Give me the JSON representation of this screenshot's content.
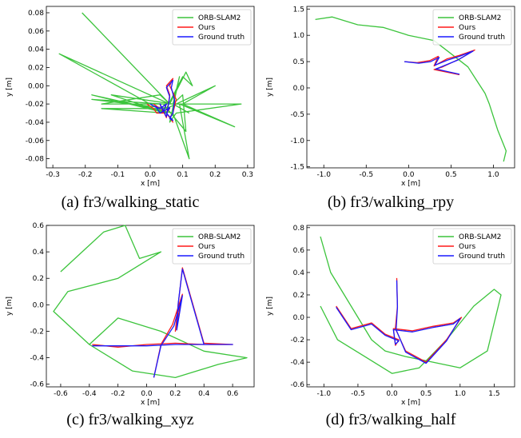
{
  "colors": {
    "orb": "#3cc43c",
    "ours": "#ff1a1a",
    "gt": "#1a1aff"
  },
  "chart_data": [
    {
      "type": "line",
      "caption": "(a) fr3/walking_static",
      "xlabel": "x [m]",
      "ylabel": "y [m]",
      "xlim": [
        -0.32,
        0.32
      ],
      "ylim": [
        -0.09,
        0.087
      ],
      "xticks": [
        "-0.3",
        "-0.2",
        "-0.1",
        "0.0",
        "0.1",
        "0.2",
        "0.3"
      ],
      "xtick_values": [
        -0.3,
        -0.2,
        -0.1,
        0.0,
        0.1,
        0.2,
        0.3
      ],
      "yticks": [
        "-0.08",
        "-0.06",
        "-0.04",
        "-0.02",
        "0.00",
        "0.02",
        "0.04",
        "0.06",
        "0.08"
      ],
      "ytick_values": [
        -0.08,
        -0.06,
        -0.04,
        -0.02,
        0.0,
        0.02,
        0.04,
        0.06,
        0.08
      ],
      "legend": {
        "position": "top-right"
      },
      "series": [
        {
          "name": "ORB-SLAM2",
          "color_key": "orb",
          "x": [
            -0.21,
            0.06,
            -0.28,
            0.05,
            -0.18,
            0.07,
            0.12,
            0.09,
            0.26,
            0.1,
            0.2,
            0.05,
            0.1,
            0.13,
            0.11,
            0.06,
            0.03,
            -0.15,
            0.04,
            -0.18,
            0.06,
            -0.15,
            0.05,
            -0.12,
            0.07,
            0.1,
            0.11,
            0.04,
            0.28,
            0.08,
            0.06,
            0.09,
            0.07,
            0.12
          ],
          "y": [
            0.08,
            -0.02,
            0.035,
            -0.03,
            -0.01,
            -0.03,
            -0.08,
            -0.02,
            -0.045,
            -0.02,
            0.0,
            -0.025,
            0.01,
            0.0,
            0.015,
            -0.02,
            -0.01,
            -0.02,
            -0.02,
            -0.015,
            -0.025,
            -0.025,
            -0.03,
            -0.01,
            -0.02,
            -0.01,
            -0.05,
            -0.02,
            -0.02,
            -0.03,
            -0.04,
            0.01,
            -0.02,
            -0.03
          ]
        },
        {
          "name": "Ours",
          "color_key": "ours",
          "x": [
            -0.01,
            0.01,
            0.02,
            0.04,
            0.03,
            0.05,
            0.06,
            0.05,
            0.07,
            0.06,
            0.08,
            0.07,
            0.06,
            0.07,
            0.05,
            0.06,
            0.04,
            0.05,
            0.03,
            0.01
          ],
          "y": [
            -0.02,
            -0.025,
            -0.03,
            -0.03,
            -0.02,
            -0.035,
            -0.01,
            0.0,
            0.008,
            0.0,
            -0.015,
            -0.03,
            -0.035,
            -0.04,
            -0.03,
            -0.025,
            -0.028,
            -0.02,
            -0.025,
            -0.02
          ]
        },
        {
          "name": "Ground truth",
          "color_key": "gt",
          "x": [
            0.0,
            0.02,
            0.03,
            0.04,
            0.03,
            0.05,
            0.06,
            0.05,
            0.07,
            0.065,
            0.075,
            0.07,
            0.06,
            0.07,
            0.05,
            0.06,
            0.04,
            0.05,
            0.03,
            0.01
          ],
          "y": [
            -0.02,
            -0.024,
            -0.03,
            -0.028,
            -0.02,
            -0.034,
            -0.012,
            -0.002,
            0.006,
            -0.002,
            -0.016,
            -0.03,
            -0.036,
            -0.038,
            -0.03,
            -0.024,
            -0.028,
            -0.02,
            -0.025,
            -0.022
          ]
        }
      ]
    },
    {
      "type": "line",
      "caption": "(b) fr3/walking_rpy",
      "xlabel": "x [m]",
      "ylabel": "y [m]",
      "xlim": [
        -1.2,
        1.25
      ],
      "ylim": [
        -1.52,
        1.55
      ],
      "xticks": [
        "-1.0",
        "-0.5",
        "0.0",
        "0.5",
        "1.0"
      ],
      "xtick_values": [
        -1.0,
        -0.5,
        0.0,
        0.5,
        1.0
      ],
      "yticks": [
        "-1.5",
        "-1.0",
        "-0.5",
        "0.0",
        "0.5",
        "1.0",
        "1.5"
      ],
      "ytick_values": [
        -1.5,
        -1.0,
        -0.5,
        0.0,
        0.5,
        1.0,
        1.5
      ],
      "legend": {
        "position": "top-right"
      },
      "series": [
        {
          "name": "ORB-SLAM2",
          "color_key": "orb",
          "x": [
            -1.1,
            -0.9,
            -0.6,
            -0.3,
            0.0,
            0.3,
            0.5,
            0.7,
            0.8,
            0.9,
            0.95,
            1.0,
            1.05,
            1.1,
            1.15,
            1.12
          ],
          "y": [
            1.3,
            1.35,
            1.2,
            1.15,
            1.0,
            0.9,
            0.65,
            0.4,
            0.15,
            -0.1,
            -0.3,
            -0.55,
            -0.8,
            -1.0,
            -1.2,
            -1.4
          ]
        },
        {
          "name": "Ours",
          "color_key": "ours",
          "x": [
            -0.05,
            0.1,
            0.25,
            0.35,
            0.3,
            0.45,
            0.6,
            0.78,
            0.6,
            0.4,
            0.3,
            0.45,
            0.6
          ],
          "y": [
            0.5,
            0.48,
            0.52,
            0.6,
            0.42,
            0.55,
            0.62,
            0.72,
            0.55,
            0.4,
            0.35,
            0.3,
            0.25
          ]
        },
        {
          "name": "Ground truth",
          "color_key": "gt",
          "x": [
            -0.05,
            0.12,
            0.26,
            0.36,
            0.31,
            0.46,
            0.6,
            0.76,
            0.58,
            0.4,
            0.32,
            0.46,
            0.6
          ],
          "y": [
            0.5,
            0.47,
            0.5,
            0.58,
            0.43,
            0.53,
            0.6,
            0.7,
            0.53,
            0.41,
            0.36,
            0.31,
            0.26
          ]
        }
      ]
    },
    {
      "type": "line",
      "caption": "(c) fr3/walking_xyz",
      "xlabel": "x [m]",
      "ylabel": "y [m]",
      "xlim": [
        -0.7,
        0.75
      ],
      "ylim": [
        -0.62,
        0.6
      ],
      "xticks": [
        "-0.6",
        "-0.4",
        "-0.2",
        "0.0",
        "0.2",
        "0.4",
        "0.6"
      ],
      "xtick_values": [
        -0.6,
        -0.4,
        -0.2,
        0.0,
        0.2,
        0.4,
        0.6
      ],
      "yticks": [
        "-0.6",
        "-0.4",
        "-0.2",
        "0.0",
        "0.2",
        "0.4",
        "0.6"
      ],
      "ytick_values": [
        -0.6,
        -0.4,
        -0.2,
        0.0,
        0.2,
        0.4,
        0.6
      ],
      "legend": {
        "position": "top-right"
      },
      "series": [
        {
          "name": "ORB-SLAM2",
          "color_key": "orb",
          "x": [
            -0.6,
            -0.45,
            -0.3,
            -0.15,
            -0.05,
            0.1,
            -0.2,
            -0.55,
            -0.65,
            -0.4,
            -0.1,
            0.2,
            0.5,
            0.7,
            0.4,
            0.1,
            -0.2,
            -0.4
          ],
          "y": [
            0.25,
            0.4,
            0.55,
            0.6,
            0.35,
            0.4,
            0.2,
            0.1,
            -0.05,
            -0.3,
            -0.5,
            -0.55,
            -0.45,
            -0.4,
            -0.35,
            -0.2,
            -0.1,
            -0.3
          ]
        },
        {
          "name": "Ours",
          "color_key": "ours",
          "x": [
            -0.38,
            -0.2,
            0.0,
            0.2,
            0.4,
            0.6,
            0.4,
            0.25,
            0.22,
            0.2,
            0.25,
            0.18,
            0.1,
            0.05
          ],
          "y": [
            -0.3,
            -0.32,
            -0.3,
            -0.29,
            -0.3,
            -0.3,
            -0.29,
            0.28,
            0.0,
            -0.2,
            0.08,
            -0.15,
            -0.3,
            -0.55
          ]
        },
        {
          "name": "Ground truth",
          "color_key": "gt",
          "x": [
            -0.38,
            -0.2,
            0.0,
            0.2,
            0.4,
            0.6,
            0.4,
            0.25,
            0.22,
            0.21,
            0.25,
            0.19,
            0.1,
            0.05
          ],
          "y": [
            -0.31,
            -0.31,
            -0.31,
            -0.3,
            -0.3,
            -0.3,
            -0.3,
            0.27,
            0.01,
            -0.19,
            0.07,
            -0.16,
            -0.31,
            -0.55
          ]
        }
      ]
    },
    {
      "type": "line",
      "caption": "(d) fr3/walking_half",
      "xlabel": "x [m]",
      "ylabel": "y [m]",
      "xlim": [
        -1.25,
        1.8
      ],
      "ylim": [
        -0.62,
        0.82
      ],
      "xticks": [
        "-1.0",
        "-0.5",
        "0.0",
        "0.5",
        "1.0",
        "1.5"
      ],
      "xtick_values": [
        -1.0,
        -0.5,
        0.0,
        0.5,
        1.0,
        1.5
      ],
      "yticks": [
        "-0.6",
        "-0.4",
        "-0.2",
        "0.0",
        "0.2",
        "0.4",
        "0.6",
        "0.8"
      ],
      "ytick_values": [
        -0.6,
        -0.4,
        -0.2,
        0.0,
        0.2,
        0.4,
        0.6,
        0.8
      ],
      "legend": {
        "position": "top-right"
      },
      "series": [
        {
          "name": "ORB-SLAM2",
          "color_key": "orb",
          "x": [
            -1.05,
            -0.9,
            -0.7,
            -0.5,
            -0.3,
            -0.1,
            0.2,
            0.6,
            1.0,
            1.4,
            1.6,
            1.5,
            1.2,
            0.8,
            0.4,
            0.0,
            -0.4,
            -0.8,
            -1.05
          ],
          "y": [
            0.72,
            0.4,
            0.2,
            0.0,
            -0.2,
            -0.3,
            -0.35,
            -0.4,
            -0.45,
            -0.3,
            0.2,
            0.25,
            0.1,
            -0.2,
            -0.45,
            -0.5,
            -0.35,
            -0.2,
            0.1
          ]
        },
        {
          "name": "Ours",
          "color_key": "ours",
          "x": [
            -0.82,
            -0.6,
            -0.3,
            -0.1,
            0.1,
            0.05,
            0.02,
            0.3,
            0.6,
            0.9,
            1.02,
            0.8,
            0.5,
            0.2,
            0.05,
            0.08,
            0.07
          ],
          "y": [
            0.1,
            -0.1,
            -0.05,
            -0.15,
            -0.2,
            -0.25,
            -0.1,
            -0.12,
            -0.08,
            -0.05,
            0.0,
            -0.2,
            -0.4,
            -0.3,
            -0.1,
            0.1,
            0.35
          ]
        },
        {
          "name": "Ground truth",
          "color_key": "gt",
          "x": [
            -0.82,
            -0.6,
            -0.3,
            -0.1,
            0.1,
            0.05,
            0.02,
            0.3,
            0.6,
            0.9,
            1.0,
            0.8,
            0.5,
            0.2,
            0.06,
            0.08,
            0.07
          ],
          "y": [
            0.09,
            -0.11,
            -0.06,
            -0.16,
            -0.21,
            -0.24,
            -0.11,
            -0.13,
            -0.09,
            -0.06,
            -0.01,
            -0.21,
            -0.41,
            -0.31,
            -0.11,
            0.09,
            0.33
          ]
        }
      ]
    }
  ]
}
